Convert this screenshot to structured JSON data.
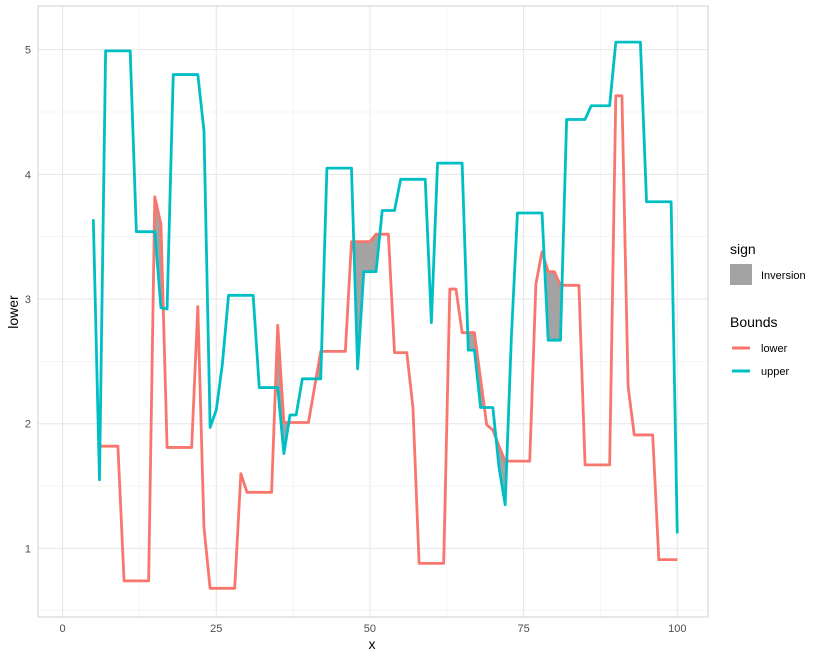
{
  "chart_data": {
    "type": "line",
    "title": "",
    "xlabel": "x",
    "ylabel": "lower",
    "xlim": [
      -4,
      105
    ],
    "ylim": [
      0.45,
      5.35
    ],
    "x_ticks": [
      0,
      25,
      50,
      75,
      100
    ],
    "y_ticks": [
      1,
      2,
      3,
      4,
      5
    ],
    "grid": true,
    "legend_position": "right",
    "legends": [
      {
        "title": "sign",
        "entries": [
          {
            "label": "Inversion",
            "color": "#A3A3A3",
            "kind": "fill"
          }
        ]
      },
      {
        "title": "Bounds",
        "entries": [
          {
            "label": "lower",
            "color": "#F8766D",
            "kind": "line"
          },
          {
            "label": "upper",
            "color": "#00BFC4",
            "kind": "line"
          }
        ]
      }
    ],
    "series": [
      {
        "name": "lower",
        "color": "#F8766D",
        "points": [
          [
            6,
            1.82
          ],
          [
            9,
            1.82
          ],
          [
            10,
            0.74
          ],
          [
            14,
            0.74
          ],
          [
            15,
            3.82
          ],
          [
            16,
            3.6
          ],
          [
            17,
            1.81
          ],
          [
            21,
            1.81
          ],
          [
            22,
            2.94
          ],
          [
            23,
            1.17
          ],
          [
            24,
            0.68
          ],
          [
            28,
            0.68
          ],
          [
            29,
            1.6
          ],
          [
            30,
            1.45
          ],
          [
            34,
            1.45
          ],
          [
            35,
            2.79
          ],
          [
            36,
            2.01
          ],
          [
            40,
            2.01
          ],
          [
            42,
            2.58
          ],
          [
            46,
            2.58
          ],
          [
            47,
            3.46
          ],
          [
            50,
            3.46
          ],
          [
            51,
            3.52
          ],
          [
            53,
            3.52
          ],
          [
            54,
            2.57
          ],
          [
            56,
            2.57
          ],
          [
            57,
            2.13
          ],
          [
            58,
            0.88
          ],
          [
            62,
            0.88
          ],
          [
            63,
            3.08
          ],
          [
            64,
            3.08
          ],
          [
            65,
            2.73
          ],
          [
            67,
            2.73
          ],
          [
            69,
            1.99
          ],
          [
            70,
            1.95
          ],
          [
            71,
            1.82
          ],
          [
            72,
            1.7
          ],
          [
            76,
            1.7
          ],
          [
            77,
            3.12
          ],
          [
            78,
            3.38
          ],
          [
            79,
            3.22
          ],
          [
            80,
            3.22
          ],
          [
            81,
            3.11
          ],
          [
            84,
            3.11
          ],
          [
            85,
            1.67
          ],
          [
            89,
            1.67
          ],
          [
            90,
            4.63
          ],
          [
            91,
            4.63
          ],
          [
            92,
            2.3
          ],
          [
            93,
            1.91
          ],
          [
            96,
            1.91
          ],
          [
            97,
            0.91
          ],
          [
            100,
            0.91
          ]
        ]
      },
      {
        "name": "upper",
        "color": "#00BFC4",
        "points": [
          [
            5,
            3.64
          ],
          [
            6,
            1.55
          ],
          [
            7,
            4.99
          ],
          [
            11,
            4.99
          ],
          [
            12,
            3.54
          ],
          [
            15,
            3.54
          ],
          [
            16,
            2.93
          ],
          [
            17,
            2.92
          ],
          [
            18,
            4.8
          ],
          [
            22,
            4.8
          ],
          [
            23,
            4.35
          ],
          [
            24,
            1.97
          ],
          [
            25,
            2.11
          ],
          [
            26,
            2.48
          ],
          [
            27,
            3.03
          ],
          [
            31,
            3.03
          ],
          [
            32,
            2.29
          ],
          [
            35,
            2.29
          ],
          [
            36,
            1.76
          ],
          [
            37,
            2.07
          ],
          [
            38,
            2.07
          ],
          [
            39,
            2.36
          ],
          [
            42,
            2.36
          ],
          [
            43,
            4.05
          ],
          [
            47,
            4.05
          ],
          [
            48,
            2.44
          ],
          [
            49,
            3.22
          ],
          [
            51,
            3.22
          ],
          [
            52,
            3.71
          ],
          [
            54,
            3.71
          ],
          [
            55,
            3.96
          ],
          [
            59,
            3.96
          ],
          [
            60,
            2.81
          ],
          [
            61,
            4.09
          ],
          [
            65,
            4.09
          ],
          [
            66,
            2.59
          ],
          [
            67,
            2.59
          ],
          [
            68,
            2.13
          ],
          [
            70,
            2.13
          ],
          [
            71,
            1.65
          ],
          [
            72,
            1.35
          ],
          [
            73,
            2.68
          ],
          [
            74,
            3.69
          ],
          [
            78,
            3.69
          ],
          [
            79,
            2.67
          ],
          [
            81,
            2.67
          ],
          [
            82,
            4.44
          ],
          [
            85,
            4.44
          ],
          [
            86,
            4.55
          ],
          [
            89,
            4.55
          ],
          [
            90,
            5.06
          ],
          [
            94,
            5.06
          ],
          [
            95,
            3.78
          ],
          [
            99,
            3.78
          ],
          [
            100,
            1.12
          ]
        ]
      }
    ],
    "inversion_color": "#A3A3A3"
  }
}
